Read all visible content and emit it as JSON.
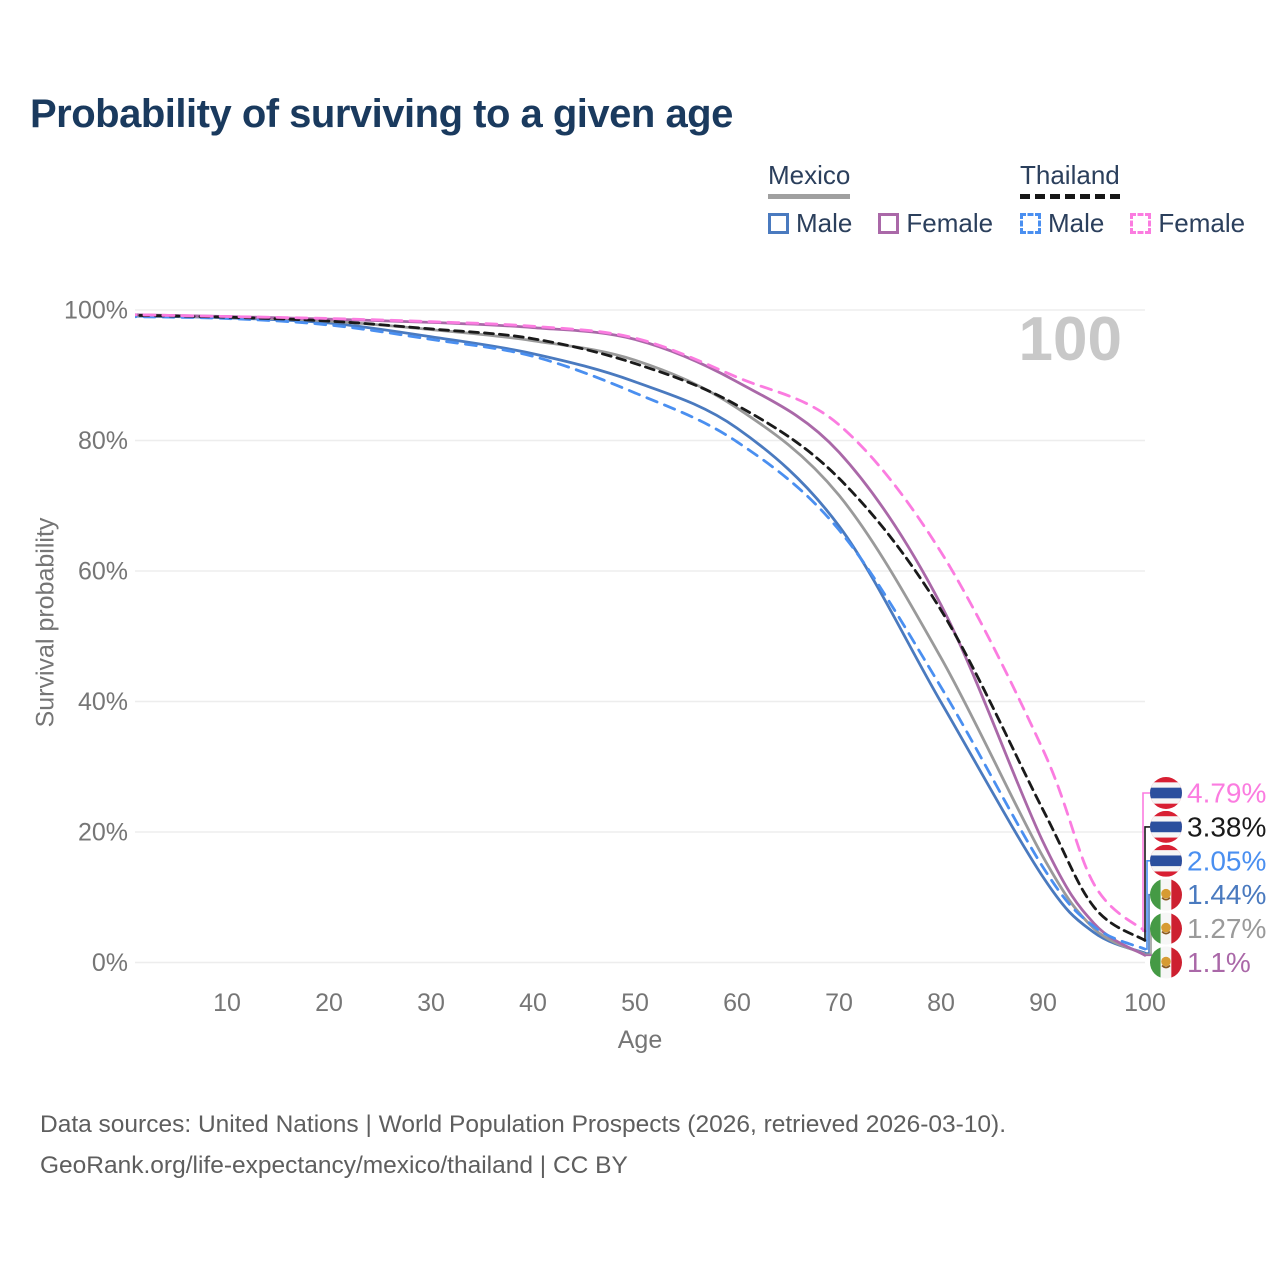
{
  "title": "Probability of surviving to a given age",
  "watermark": "100",
  "legend": {
    "groups": [
      {
        "name": "Mexico",
        "line_style": "solid",
        "underline_color": "#a0a0a0",
        "items": [
          {
            "label": "Male",
            "color": "#4a7abf",
            "dashed": false
          },
          {
            "label": "Female",
            "color": "#aa68a8",
            "dashed": false
          }
        ]
      },
      {
        "name": "Thailand",
        "line_style": "dashed",
        "underline_color": "#161616",
        "items": [
          {
            "label": "Male",
            "color": "#4a8ff0",
            "dashed": true
          },
          {
            "label": "Female",
            "color": "#fb7ce0",
            "dashed": true
          }
        ]
      }
    ]
  },
  "chart_data": {
    "type": "line",
    "title": "Probability of surviving to a given age",
    "xlabel": "Age",
    "ylabel": "Survival probability",
    "x_ticks": [
      10,
      20,
      30,
      40,
      50,
      60,
      70,
      80,
      90,
      100
    ],
    "y_ticks": [
      0,
      20,
      40,
      60,
      80,
      100
    ],
    "y_tick_suffix": "%",
    "xlim": [
      0,
      100
    ],
    "ylim": [
      0,
      100
    ],
    "grid": true,
    "x": [
      0,
      10,
      20,
      30,
      40,
      50,
      60,
      70,
      80,
      90,
      95,
      100
    ],
    "series": [
      {
        "name": "Thailand Female",
        "country": "Thailand",
        "sex": "Female",
        "color": "#fb7ce0",
        "dash": true,
        "end_label": "4.79%",
        "end_value": 4.79,
        "values": [
          99.3,
          99.0,
          98.7,
          98.2,
          97.5,
          95.7,
          89.7,
          82.4,
          62.9,
          32.6,
          12.0,
          4.79
        ]
      },
      {
        "name": "Thailand Total",
        "country": "Thailand",
        "sex": "Both",
        "color": "#1a1a1a",
        "dash": true,
        "end_label": "3.38%",
        "end_value": 3.38,
        "values": [
          99.2,
          98.9,
          98.3,
          97.1,
          95.6,
          91.8,
          85.4,
          74.2,
          54.0,
          23.4,
          8.5,
          3.38
        ]
      },
      {
        "name": "Thailand Male",
        "country": "Thailand",
        "sex": "Male",
        "color": "#4a8ff0",
        "dash": true,
        "end_label": "2.05%",
        "end_value": 2.05,
        "values": [
          99.0,
          98.7,
          97.7,
          95.5,
          92.9,
          87.3,
          79.8,
          66.3,
          42.2,
          14.6,
          5.5,
          2.05
        ]
      },
      {
        "name": "Mexico Male",
        "country": "Mexico",
        "sex": "Male",
        "color": "#4a7abf",
        "dash": false,
        "end_label": "1.44%",
        "end_value": 1.44,
        "values": [
          99.1,
          98.8,
          98.0,
          95.9,
          93.3,
          89.0,
          81.9,
          66.9,
          39.9,
          13.1,
          4.6,
          1.44
        ]
      },
      {
        "name": "Mexico Total",
        "country": "Mexico",
        "sex": "Both",
        "color": "#9a9a9a",
        "dash": false,
        "end_label": "1.27%",
        "end_value": 1.27,
        "values": [
          99.2,
          98.9,
          98.3,
          97.0,
          95.3,
          92.3,
          85.0,
          71.6,
          46.7,
          16.2,
          5.2,
          1.27
        ]
      },
      {
        "name": "Mexico Female",
        "country": "Mexico",
        "sex": "Female",
        "color": "#aa68a8",
        "dash": false,
        "end_label": "1.1%",
        "end_value": 1.1,
        "values": [
          99.3,
          99.0,
          98.6,
          98.1,
          97.3,
          95.5,
          89.0,
          78.2,
          54.8,
          18.5,
          6.0,
          1.1
        ]
      }
    ],
    "legend_position": "top-right"
  },
  "footer": {
    "line1": "Data sources: United Nations | World Population Prospects (2026, retrieved 2026-03-10).",
    "line2": "GeoRank.org/life-expectancy/mexico/thailand | CC BY"
  }
}
